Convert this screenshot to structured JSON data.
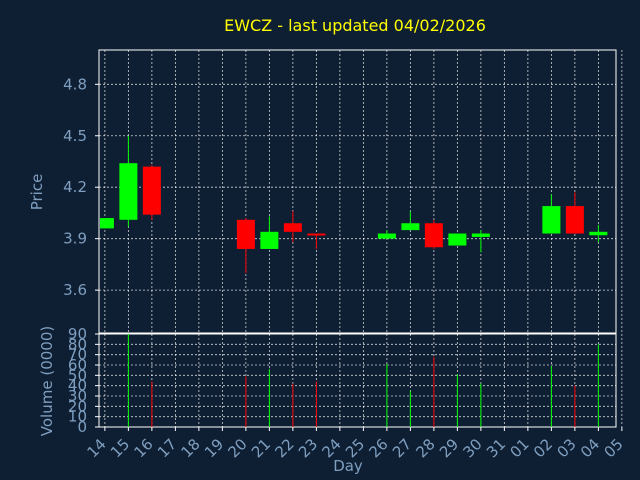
{
  "title": "EWCZ - last updated 04/02/2026",
  "colors": {
    "background": "#0f1f33",
    "title": "#ffff00",
    "axis_text": "#7f9fc0",
    "axis_line": "#ffffff",
    "grid": "#ffffff",
    "up": "#00ff00",
    "down": "#ff0000"
  },
  "chart_data": [
    {
      "type": "candlestick",
      "ylabel": "Price",
      "ylim": [
        3.35,
        5.0
      ],
      "yticks": [
        "3.6",
        "3.9",
        "4.2",
        "4.5",
        "4.8"
      ],
      "xlim": [
        -0.25,
        21.75
      ],
      "grid": true,
      "candles": [
        {
          "i": 0,
          "open": 3.96,
          "high": 4.02,
          "low": 3.96,
          "close": 4.02
        },
        {
          "i": 1,
          "open": 4.01,
          "high": 4.5,
          "low": 3.97,
          "close": 4.34
        },
        {
          "i": 2,
          "open": 4.32,
          "high": 4.33,
          "low": 4.01,
          "close": 4.04
        },
        {
          "i": 6,
          "open": 4.01,
          "high": 4.02,
          "low": 3.7,
          "close": 3.84
        },
        {
          "i": 7,
          "open": 3.84,
          "high": 4.03,
          "low": 3.84,
          "close": 3.94
        },
        {
          "i": 8,
          "open": 3.99,
          "high": 4.06,
          "low": 3.88,
          "close": 3.94
        },
        {
          "i": 9,
          "open": 3.93,
          "high": 3.93,
          "low": 3.84,
          "close": 3.92
        },
        {
          "i": 12,
          "open": 3.9,
          "high": 3.95,
          "low": 3.9,
          "close": 3.93
        },
        {
          "i": 13,
          "open": 3.95,
          "high": 4.06,
          "low": 3.95,
          "close": 3.99
        },
        {
          "i": 14,
          "open": 3.99,
          "high": 4.01,
          "low": 3.84,
          "close": 3.85
        },
        {
          "i": 15,
          "open": 3.86,
          "high": 3.93,
          "low": 3.86,
          "close": 3.93
        },
        {
          "i": 16,
          "open": 3.91,
          "high": 3.95,
          "low": 3.82,
          "close": 3.93
        },
        {
          "i": 19,
          "open": 3.93,
          "high": 4.16,
          "low": 3.93,
          "close": 4.09
        },
        {
          "i": 20,
          "open": 4.09,
          "high": 4.17,
          "low": 3.93,
          "close": 3.93
        },
        {
          "i": 21,
          "open": 3.92,
          "high": 3.98,
          "low": 3.88,
          "close": 3.94
        }
      ]
    },
    {
      "type": "bar",
      "ylabel": "Volume (0000)",
      "xlabel": "Day",
      "ylim": [
        0,
        90
      ],
      "yticks": [
        "0",
        "10",
        "20",
        "30",
        "40",
        "50",
        "60",
        "70",
        "80",
        "90"
      ],
      "categories": [
        "14",
        "15",
        "16",
        "17",
        "18",
        "19",
        "20",
        "21",
        "22",
        "23",
        "24",
        "25",
        "26",
        "27",
        "28",
        "29",
        "30",
        "31",
        "01",
        "02",
        "03",
        "04",
        "05"
      ],
      "bars": [
        {
          "i": 1,
          "value": 90,
          "dir": "up"
        },
        {
          "i": 2,
          "value": 44,
          "dir": "down"
        },
        {
          "i": 6,
          "value": 49,
          "dir": "down"
        },
        {
          "i": 7,
          "value": 56,
          "dir": "up"
        },
        {
          "i": 8,
          "value": 42,
          "dir": "down"
        },
        {
          "i": 9,
          "value": 44,
          "dir": "down"
        },
        {
          "i": 12,
          "value": 61,
          "dir": "up"
        },
        {
          "i": 13,
          "value": 35,
          "dir": "up"
        },
        {
          "i": 14,
          "value": 68,
          "dir": "down"
        },
        {
          "i": 15,
          "value": 51,
          "dir": "up"
        },
        {
          "i": 16,
          "value": 42,
          "dir": "up"
        },
        {
          "i": 19,
          "value": 59,
          "dir": "up"
        },
        {
          "i": 20,
          "value": 40,
          "dir": "down"
        },
        {
          "i": 21,
          "value": 80,
          "dir": "up"
        }
      ]
    }
  ]
}
